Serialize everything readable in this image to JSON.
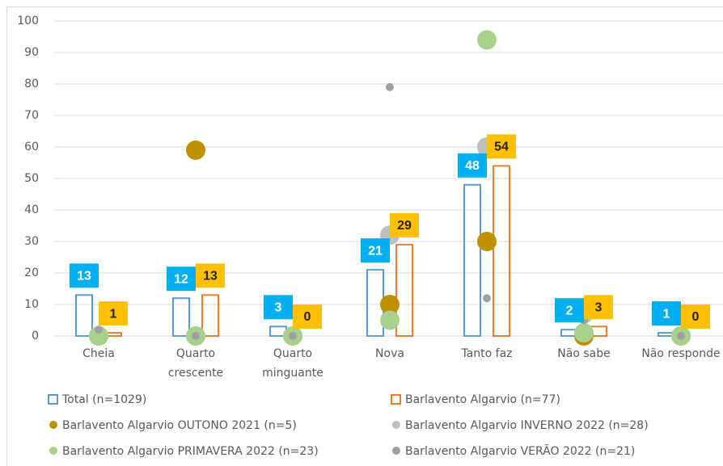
{
  "chart_data": {
    "type": "bar",
    "categories": [
      "Cheia",
      "Quarto\ncrescente",
      "Quarto\nminguante",
      "Nova",
      "Tanto faz",
      "Não sabe",
      "Não responde"
    ],
    "ylim": [
      0,
      100
    ],
    "yticks": [
      0,
      10,
      20,
      30,
      40,
      50,
      60,
      70,
      80,
      90,
      100
    ],
    "grid": true,
    "series": [
      {
        "name": "Total (n=1029)",
        "type": "bar",
        "color": "#5b9bd5",
        "label_fill": "#00b0f0",
        "label_text": "#ffffff",
        "values": [
          13,
          12,
          3,
          21,
          48,
          2,
          1
        ]
      },
      {
        "name": "Barlavento Algarvio (n=77)",
        "type": "bar",
        "color": "#ed7d31",
        "label_fill": "#ffc000",
        "label_text": "#262626",
        "values": [
          1,
          13,
          0,
          29,
          54,
          3,
          0
        ]
      },
      {
        "name": "Barlavento Algarvio OUTONO 2021 (n=5)",
        "type": "scatter",
        "color": "#bf9000",
        "size": "large",
        "values": [
          0,
          59,
          0,
          10,
          30,
          0,
          0
        ]
      },
      {
        "name": "Barlavento Algarvio INVERNO 2022 (n=28)",
        "type": "scatter",
        "color": "#bfbfbf",
        "size": "large",
        "values": [
          0,
          0,
          0,
          32,
          60,
          7,
          0
        ]
      },
      {
        "name": "Barlavento Algarvio PRIMAVERA 2022 (n=23)",
        "type": "scatter",
        "color": "#a9d18e",
        "size": "large",
        "values": [
          0,
          0,
          0,
          5,
          94,
          1,
          0
        ]
      },
      {
        "name": "Barlavento Algarvio VERÃO 2022 (n=21)",
        "type": "scatter",
        "color": "#a0a0a0",
        "size": "small",
        "values": [
          2,
          0,
          0,
          79,
          12,
          5,
          0
        ]
      }
    ]
  }
}
